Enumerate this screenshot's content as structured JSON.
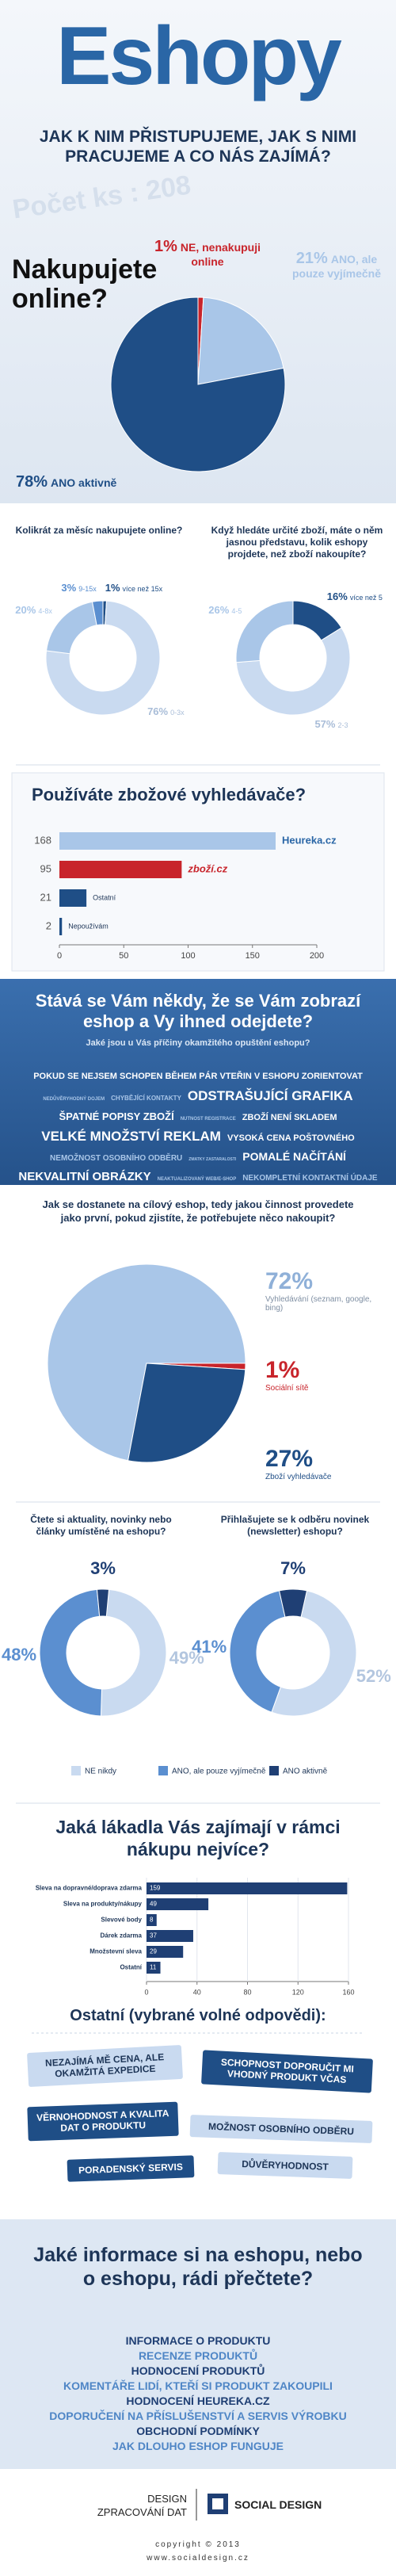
{
  "header": {
    "title": "Eshopy",
    "subtitle": "JAK K NIM PŘISTUPUJEME, JAK S NIMI PRACUJEME A CO NÁS ZAJÍMÁ?",
    "count": "Počet ks : 208"
  },
  "chart_data": [
    {
      "type": "pie",
      "title": "Nakupujete online?",
      "categories": [
        "NE, nenakupuji online",
        "ANO, ale pouze vyjímečně",
        "ANO aktivně"
      ],
      "values": [
        1,
        21,
        78
      ],
      "value_labels": [
        "1%",
        "21%",
        "78%"
      ],
      "colors": [
        "#c8242b",
        "#a9c6e8",
        "#1f4e86"
      ]
    },
    {
      "type": "donut",
      "title": "Kolikrát za měsíc nakupujete online?",
      "categories": [
        "více než 15x",
        "0-3x",
        "4-8x",
        "9-15x"
      ],
      "values": [
        1,
        76,
        20,
        3
      ],
      "value_labels": [
        "1%",
        "76%",
        "20%",
        "3%"
      ],
      "colors": [
        "#1f4e86",
        "#c9daf0",
        "#a9c6e8",
        "#5b8fd0"
      ]
    },
    {
      "type": "donut",
      "title": "Když hledáte určité zboží, máte o něm jasnou představu, kolik eshopy projdete, než zboží nakoupíte?",
      "categories": [
        "více než 5",
        "2-3",
        "4-5"
      ],
      "values": [
        16,
        57,
        26
      ],
      "value_labels": [
        "16%",
        "57%",
        "26%"
      ],
      "colors": [
        "#1f4e86",
        "#c9daf0",
        "#a9c6e8"
      ]
    },
    {
      "type": "hbar",
      "title": "Používáte zbožové vyhledávače?",
      "categories": [
        "Heureka.cz",
        "zboží.cz",
        "Ostatní",
        "Nepoužívám"
      ],
      "values": [
        168,
        95,
        21,
        2
      ],
      "colors": [
        "#a9c6e8",
        "#c8242b",
        "#1f4e86",
        "#1f4e86"
      ],
      "xlim": [
        0,
        200
      ],
      "xticks": [
        0,
        50,
        100,
        150,
        200
      ]
    },
    {
      "type": "pie",
      "title": "Jak se dostanete na cílový eshop, tedy jakou činnost provedete jako první, pokud zjistíte, že potřebujete něco nakoupit?",
      "categories": [
        "Vyhledávání (seznam, google, bing)",
        "Sociální sítě",
        "Zboží vyhledávače"
      ],
      "values": [
        72,
        1,
        27
      ],
      "value_labels": [
        "72%",
        "1%",
        "27%"
      ],
      "colors": [
        "#a9c6e8",
        "#c8242b",
        "#1f4e86"
      ]
    },
    {
      "type": "donut",
      "title": "Čtete si aktuality, novinky nebo články umístěné na eshopu?",
      "categories": [
        "NE nikdy",
        "ANO, ale pouze vyjímečně",
        "ANO aktivně"
      ],
      "values": [
        49,
        48,
        3
      ],
      "value_labels": [
        "49%",
        "48%",
        "3%"
      ],
      "colors": [
        "#c9daf0",
        "#5b8fd0",
        "#1f3f74"
      ]
    },
    {
      "type": "donut",
      "title": "Přihlašujete se k odběru novinek (newsletter) eshopu?",
      "values": [
        52,
        41,
        7
      ],
      "value_labels": [
        "52%",
        "41%",
        "7%"
      ],
      "colors": [
        "#c9daf0",
        "#5b8fd0",
        "#1f3f74"
      ]
    },
    {
      "type": "hbar",
      "title": "Jaká lákadla Vás zajímají v rámci nákupu nejvíce?",
      "categories": [
        "Sleva na dopravné/doprava zdarma",
        "Sleva na produkty/nákupy",
        "Slevové body",
        "Dárek zdarma",
        "Množstevní sleva",
        "Ostatní"
      ],
      "values": [
        159,
        49,
        8,
        37,
        29,
        11
      ],
      "color": "#1f3f74",
      "xlim": [
        0,
        160
      ],
      "xticks": [
        0,
        40,
        80,
        120,
        160
      ]
    }
  ],
  "leave": {
    "title": "Stává se Vám někdy, že se Vám zobrazí eshop a Vy ihned odejdete?",
    "subtitle": "Jaké jsou u Vás příčiny okamžitého opuštění eshopu?",
    "reasons": [
      "POKUD SE NEJSEM SCHOPEN BĚHEM PÁR VTEŘIN V ESHOPU ZORIENTOVAT",
      "NEDŮVĚRYHODNÝ DOJEM",
      "CHYBĚJÍCÍ KONTAKTY",
      "ODSTRAŠUJÍCÍ GRAFIKA",
      "ŠPATNÉ POPISY ZBOŽÍ",
      "NUTNOST REGISTRACE",
      "ZBOŽÍ NENÍ SKLADEM",
      "VELKÉ MNOŽSTVÍ REKLAM",
      "VYSOKÁ CENA POŠTOVNÉHO",
      "NEMOŽNOST OSOBNÍHO ODBĚRU",
      "ZMATKY ZASTARALOSTI",
      "POMALÉ NAČÍTÁNÍ",
      "NEKVALITNÍ OBRÁZKY",
      "NEAKTUALIZOVANÝ WEB/E-SHOP",
      "NEKOMPLETNÍ KONTAKTNÍ ÚDAJE"
    ]
  },
  "other_answers": {
    "title": "Ostatní (vybrané volné odpovědi):",
    "items": [
      "NEZAJÍMÁ MĚ CENA, ALE OKAMŽITÁ EXPEDICE",
      "SCHOPNOST DOPORUČIT MI VHODNÝ PRODUKT VČAS",
      "VĚRNOHODNOST A KVALITA DAT O PRODUKTU",
      "MOŽNOST OSOBNÍHO ODBĚRU",
      "PORADENSKÝ SERVIS",
      "DŮVĚRYHODNOST"
    ]
  },
  "reading": {
    "title": "Jaké informace si na eshopu, nebo o eshopu, rádi přečtete?",
    "items": [
      "INFORMACE O PRODUKTU",
      "RECENZE PRODUKTŮ",
      "HODNOCENÍ PRODUKTŮ",
      "KOMENTÁŘE LIDÍ, KTEŘÍ SI PRODUKT ZAKOUPILI",
      "HODNOCENÍ HEUREKA.CZ",
      "DOPORUČENÍ NA PŘÍSLUŠENSTVÍ A SERVIS VÝROBKU",
      "OBCHODNÍ PODMÍNKY",
      "JAK DLOUHO ESHOP FUNGUJE"
    ]
  },
  "footer": {
    "credits": [
      "DESIGN",
      "ZPRACOVÁNÍ DAT"
    ],
    "brand": "SOCIAL DESIGN",
    "copyright": "copyright © 2013",
    "url": "www.socialdesign.cz"
  }
}
